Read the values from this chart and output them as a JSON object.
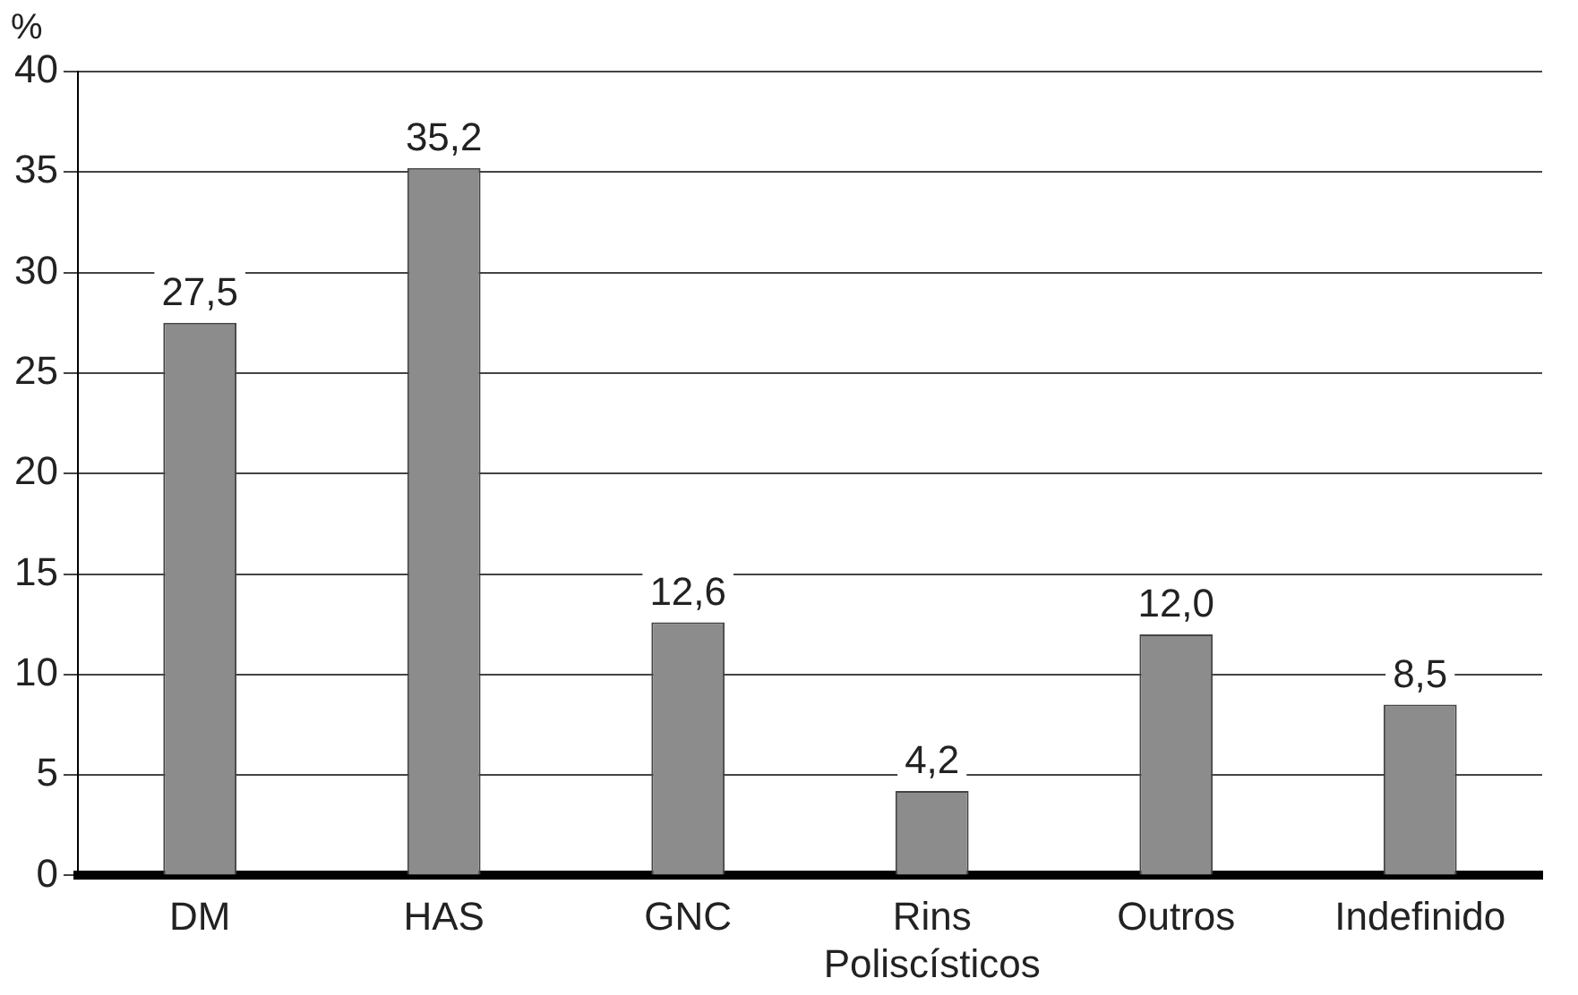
{
  "chart_data": {
    "type": "bar",
    "ylabel": "%",
    "categories": [
      "DM",
      "HAS",
      "GNC",
      "Rins Poliscísticos",
      "Outros",
      "Indefinido"
    ],
    "values": [
      27.5,
      35.2,
      12.6,
      4.2,
      12.0,
      8.5
    ],
    "value_labels": [
      "27,5",
      "35,2",
      "12,6",
      "4,2",
      "12,0",
      "8,5"
    ],
    "color": "#8c8c8c",
    "ylim": [
      0,
      40
    ],
    "yticks": [
      0,
      5,
      10,
      15,
      20,
      25,
      30,
      35,
      40
    ],
    "grid": "y",
    "legend": false
  }
}
